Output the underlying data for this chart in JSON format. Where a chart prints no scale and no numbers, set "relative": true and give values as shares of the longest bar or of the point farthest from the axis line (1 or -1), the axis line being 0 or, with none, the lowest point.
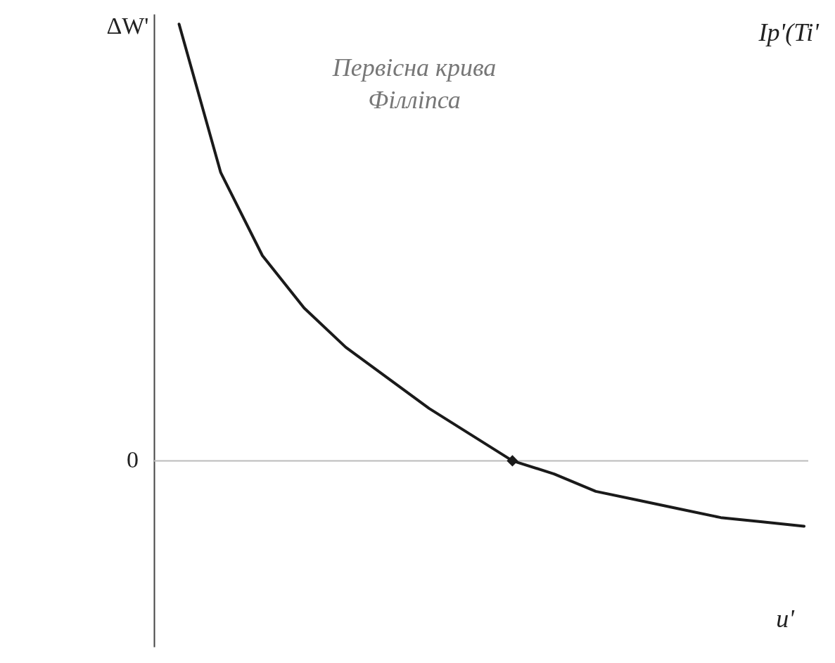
{
  "chart_data": {
    "type": "line",
    "relative": true,
    "ylabel": "ΔW'",
    "xlabel": "u'",
    "annotations": [
      "Первісна крива Філліпса",
      "Ip'(Ti'"
    ],
    "categories": [
      null,
      null,
      null,
      null,
      null,
      null,
      null,
      null,
      null,
      null,
      null,
      null,
      null,
      null,
      null,
      null
    ],
    "ref_lines": [
      {
        "axis": "y",
        "value": 0,
        "label": "0",
        "color": "#bbbbbb"
      }
    ],
    "series": [
      {
        "color": "#1a1a1a",
        "values": [
          1,
          0.66,
          0.47,
          0.35,
          0.26,
          0.19,
          0.12,
          0.06,
          0,
          -0.03,
          -0.07,
          -0.09,
          -0.11,
          -0.13,
          -0.14,
          -0.15
        ]
      }
    ]
  }
}
